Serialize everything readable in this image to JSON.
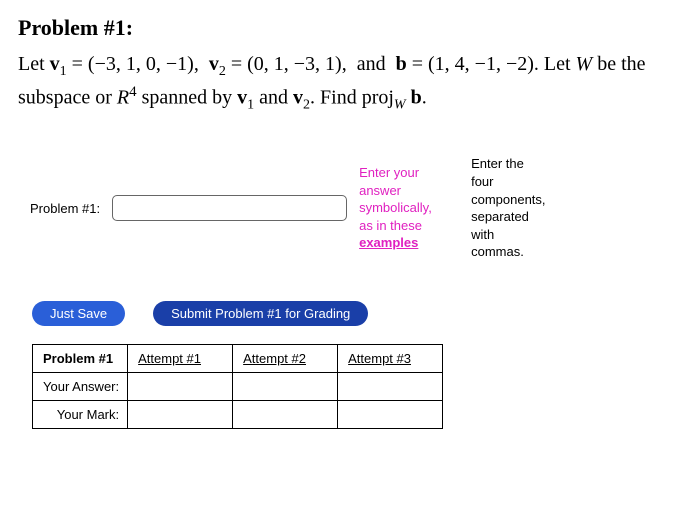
{
  "heading": "Problem #1:",
  "problem_html": "Let <span class='v-bold'>v</span><span class='sub'>1</span> = (−3, 1, 0, −1),&nbsp; <span class='v-bold'>v</span><span class='sub'>2</span> = (0, 1, −3, 1),&nbsp; and&nbsp; <span class='v-bold'>b</span> = (1, 4, −1, −2). Let <span class='italic'>W</span> be the subspace or <span class='italic'>R</span><span class='sup'>4</span> spanned by <span class='v-bold'>v</span><span class='sub'>1</span> and <span class='v-bold'>v</span><span class='sub'>2</span>. Find proj<span class='sub italic'>W</span> <span class='v-bold'>b</span>.",
  "answer_label": "Problem #1:",
  "answer_value": "",
  "hint_magenta_lines": [
    "Enter your",
    "answer",
    "symbolically,",
    "as in these"
  ],
  "hint_link": "examples",
  "hint_right_lines": [
    "Enter the",
    "four",
    "components,",
    "separated",
    "with",
    "commas."
  ],
  "buttons": {
    "save": "Just Save",
    "submit": "Submit Problem #1 for Grading"
  },
  "attempts": {
    "header": "Problem #1",
    "columns": [
      "Attempt #1",
      "Attempt #2",
      "Attempt #3"
    ],
    "rows": [
      "Your Answer:",
      "Your Mark:"
    ]
  },
  "colors": {
    "magenta": "#e020c0",
    "btn_save": "#2a5fd8",
    "btn_submit": "#1a3fa8"
  }
}
